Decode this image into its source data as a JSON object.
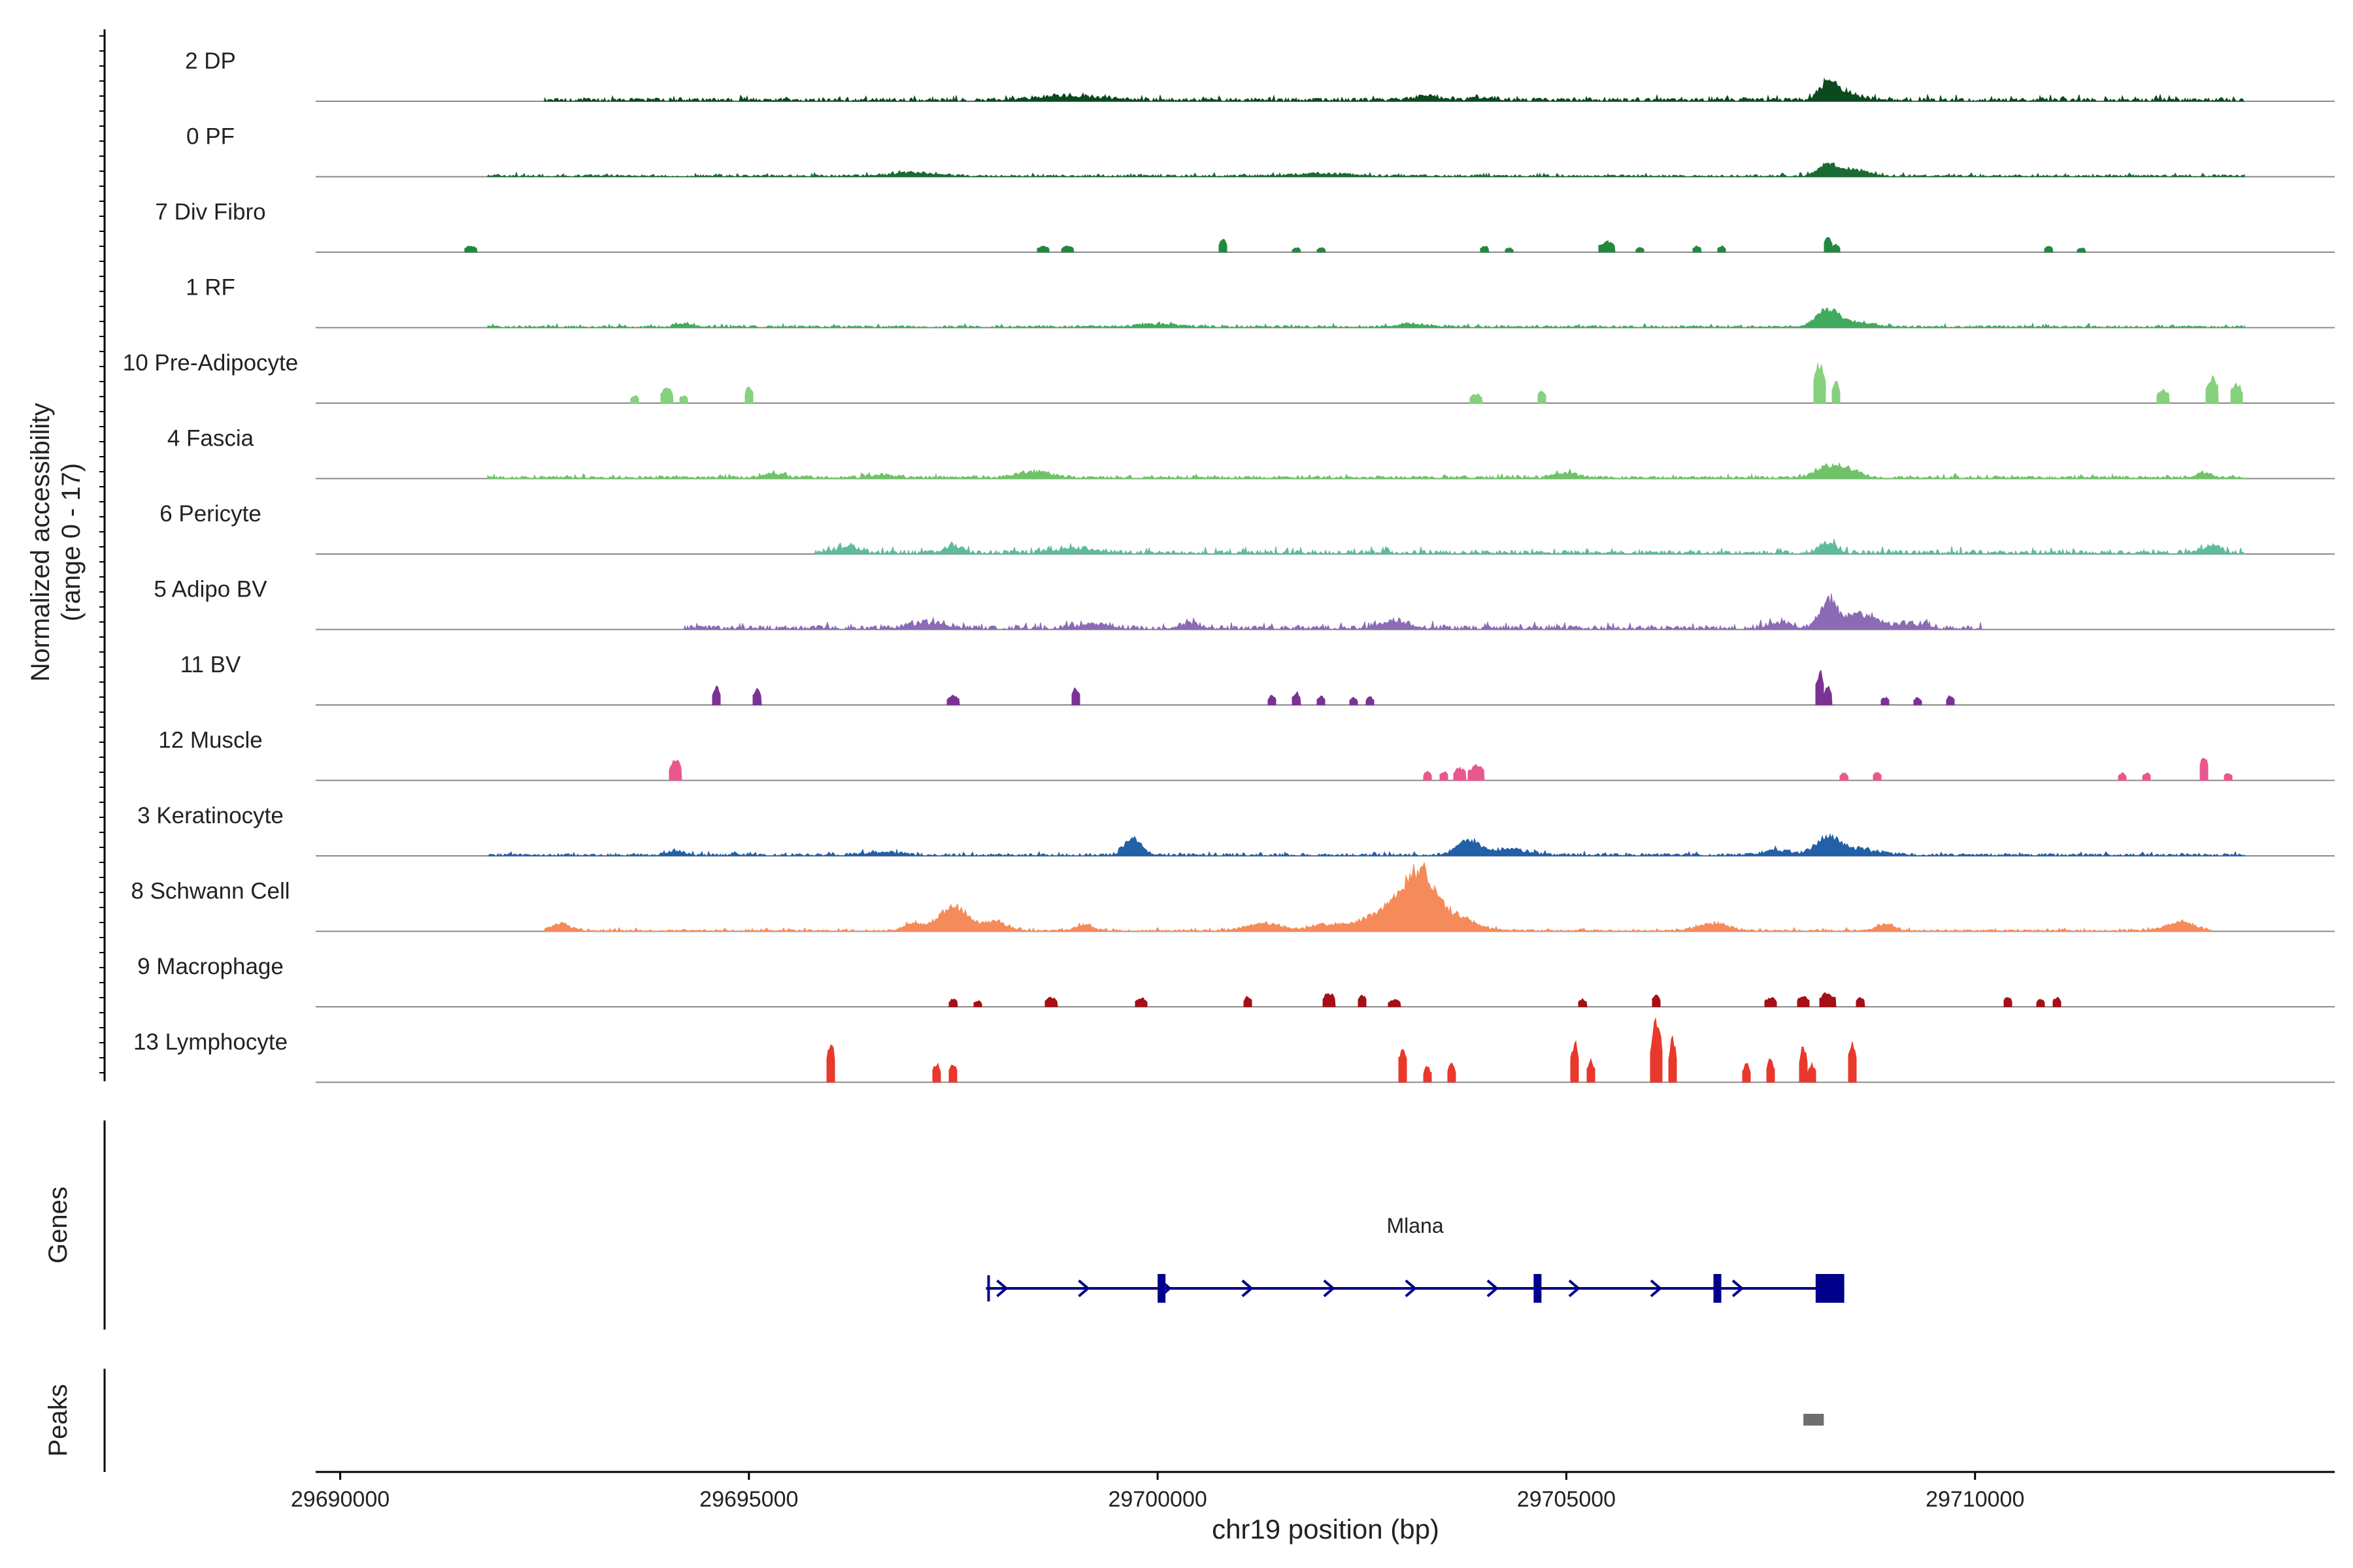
{
  "chart_data": {
    "type": "area",
    "title": "",
    "ylabel_line1": "Normalized accessibility",
    "ylabel_line2": "(range 0 - 17)",
    "ylim": [
      0,
      17
    ],
    "xlabel": "chr19 position (bp)",
    "xlim": [
      29689700,
      29714400
    ],
    "xticks": [
      29690000,
      29695000,
      29700000,
      29705000,
      29710000
    ],
    "xtick_labels": [
      "29690000",
      "29695000",
      "29700000",
      "29705000",
      "29710000"
    ],
    "tracks": [
      {
        "name": "2 DP",
        "color": "#0b4a1f",
        "mode": "continuous",
        "start": 29692500,
        "end": 29713300,
        "base": 0.6,
        "ampl": 1.6,
        "peaks": [
          [
            29698900,
            500,
            3
          ],
          [
            29703300,
            200,
            3
          ],
          [
            29704000,
            200,
            2
          ],
          [
            29708200,
            150,
            10
          ],
          [
            29708400,
            250,
            5
          ]
        ]
      },
      {
        "name": "0 PF",
        "color": "#1a6b32",
        "mode": "continuous",
        "start": 29691800,
        "end": 29713300,
        "base": 0.3,
        "ampl": 1.1,
        "peaks": [
          [
            29697000,
            400,
            2
          ],
          [
            29702000,
            500,
            1.6
          ],
          [
            29708200,
            150,
            8
          ],
          [
            29708500,
            250,
            4
          ]
        ]
      },
      {
        "name": "7 Div Fibro",
        "color": "#23883f",
        "mode": "sparse",
        "peaks": [
          [
            29691600,
            150,
            4
          ],
          [
            29698600,
            150,
            4
          ],
          [
            29698900,
            150,
            4
          ],
          [
            29700800,
            80,
            8
          ],
          [
            29701700,
            100,
            3
          ],
          [
            29702000,
            100,
            3
          ],
          [
            29704000,
            100,
            4
          ],
          [
            29704300,
            100,
            3
          ],
          [
            29705500,
            200,
            7
          ],
          [
            29705900,
            80,
            3
          ],
          [
            29706600,
            100,
            4
          ],
          [
            29706900,
            100,
            4
          ],
          [
            29708200,
            80,
            11
          ],
          [
            29708300,
            80,
            5
          ],
          [
            29710900,
            100,
            4
          ],
          [
            29711300,
            100,
            3
          ]
        ]
      },
      {
        "name": "1 RF",
        "color": "#41ab5d",
        "mode": "continuous",
        "start": 29691800,
        "end": 29713300,
        "base": 0.3,
        "ampl": 1.1,
        "peaks": [
          [
            29694200,
            150,
            2.5
          ],
          [
            29700000,
            400,
            1.5
          ],
          [
            29703100,
            300,
            2
          ],
          [
            29708200,
            200,
            12
          ],
          [
            29708600,
            250,
            3
          ]
        ]
      },
      {
        "name": "10 Pre-Adipocyte",
        "color": "#86d17e",
        "mode": "sparse",
        "peaks": [
          [
            29693600,
            80,
            5
          ],
          [
            29694000,
            150,
            10
          ],
          [
            29694200,
            100,
            5
          ],
          [
            29695000,
            100,
            11
          ],
          [
            29703900,
            150,
            6
          ],
          [
            29704700,
            100,
            9
          ],
          [
            29708100,
            150,
            26
          ],
          [
            29708300,
            100,
            14
          ],
          [
            29712300,
            150,
            9
          ],
          [
            29712900,
            150,
            17
          ],
          [
            29713200,
            150,
            13
          ]
        ]
      },
      {
        "name": "4 Fascia",
        "color": "#6fc367",
        "mode": "continuous",
        "start": 29691800,
        "end": 29713300,
        "base": 0.5,
        "ampl": 1.2,
        "peaks": [
          [
            29695300,
            150,
            3
          ],
          [
            29696600,
            200,
            2
          ],
          [
            29698500,
            300,
            4
          ],
          [
            29705000,
            200,
            3
          ],
          [
            29708200,
            200,
            8
          ],
          [
            29708500,
            200,
            4
          ],
          [
            29712800,
            150,
            3
          ]
        ]
      },
      {
        "name": "6 Pericyte",
        "color": "#5ebc9d",
        "mode": "continuous",
        "start": 29695800,
        "end": 29713300,
        "base": 0.5,
        "ampl": 2.0,
        "peaks": [
          [
            29696200,
            200,
            4
          ],
          [
            29697500,
            150,
            5
          ],
          [
            29699000,
            400,
            3
          ],
          [
            29708200,
            150,
            6
          ],
          [
            29712900,
            150,
            5
          ]
        ]
      },
      {
        "name": "5 Adipo BV",
        "color": "#8b6bb5",
        "mode": "continuous",
        "start": 29694200,
        "end": 29710100,
        "base": 0.4,
        "ampl": 2.2,
        "peaks": [
          [
            29697200,
            300,
            4
          ],
          [
            29699200,
            300,
            3
          ],
          [
            29700400,
            200,
            3
          ],
          [
            29702900,
            250,
            5
          ],
          [
            29708200,
            150,
            18
          ],
          [
            29708600,
            300,
            9
          ],
          [
            29707600,
            200,
            4
          ],
          [
            29709200,
            200,
            3
          ]
        ]
      },
      {
        "name": "11 BV",
        "color": "#7b3294",
        "mode": "sparse",
        "peaks": [
          [
            29694600,
            100,
            12
          ],
          [
            29695100,
            100,
            10
          ],
          [
            29697500,
            150,
            6
          ],
          [
            29699000,
            100,
            11
          ],
          [
            29701400,
            80,
            6
          ],
          [
            29701700,
            100,
            8
          ],
          [
            29702000,
            80,
            6
          ],
          [
            29702400,
            80,
            5
          ],
          [
            29702600,
            80,
            5
          ],
          [
            29708100,
            80,
            22
          ],
          [
            29708200,
            100,
            12
          ],
          [
            29708900,
            80,
            5
          ],
          [
            29709300,
            80,
            5
          ],
          [
            29709700,
            80,
            6
          ]
        ]
      },
      {
        "name": "12 Muscle",
        "color": "#e8588f",
        "mode": "sparse",
        "peaks": [
          [
            29694100,
            150,
            13
          ],
          [
            29703300,
            80,
            6
          ],
          [
            29703500,
            80,
            6
          ],
          [
            29703700,
            150,
            8
          ],
          [
            29703900,
            200,
            10
          ],
          [
            29708400,
            100,
            5
          ],
          [
            29708800,
            80,
            6
          ],
          [
            29711800,
            80,
            5
          ],
          [
            29712100,
            80,
            5
          ],
          [
            29712800,
            100,
            17
          ],
          [
            29713100,
            80,
            5
          ]
        ]
      },
      {
        "name": "3 Keratinocyte",
        "color": "#2260a8",
        "mode": "continuous",
        "start": 29691800,
        "end": 29713300,
        "base": 0.4,
        "ampl": 1.2,
        "peaks": [
          [
            29694100,
            150,
            3
          ],
          [
            29696600,
            300,
            2
          ],
          [
            29699700,
            150,
            10
          ],
          [
            29703800,
            200,
            10
          ],
          [
            29704300,
            300,
            4
          ],
          [
            29707600,
            250,
            3
          ],
          [
            29708200,
            200,
            12
          ],
          [
            29708600,
            300,
            4
          ]
        ]
      },
      {
        "name": "8 Schwann Cell",
        "color": "#f58b5a",
        "mode": "continuous",
        "start": 29692500,
        "end": 29712900,
        "base": 0.2,
        "ampl": 1.0,
        "peaks": [
          [
            29692700,
            150,
            5
          ],
          [
            29697000,
            150,
            5
          ],
          [
            29697500,
            250,
            16
          ],
          [
            29698000,
            200,
            6
          ],
          [
            29699100,
            150,
            4
          ],
          [
            29701300,
            300,
            5
          ],
          [
            29702100,
            300,
            4
          ],
          [
            29702800,
            350,
            14
          ],
          [
            29703200,
            250,
            36
          ],
          [
            29703600,
            350,
            10
          ],
          [
            29706800,
            250,
            5
          ],
          [
            29708900,
            150,
            5
          ],
          [
            29712500,
            250,
            6
          ]
        ]
      },
      {
        "name": "9 Macrophage",
        "color": "#a50f15",
        "mode": "sparse",
        "peaks": [
          [
            29697500,
            100,
            5
          ],
          [
            29697800,
            80,
            4
          ],
          [
            29698700,
            150,
            6
          ],
          [
            29699800,
            150,
            6
          ],
          [
            29701100,
            80,
            7
          ],
          [
            29702100,
            150,
            9
          ],
          [
            29702500,
            100,
            8
          ],
          [
            29702900,
            150,
            5
          ],
          [
            29705200,
            100,
            5
          ],
          [
            29706100,
            80,
            8
          ],
          [
            29707500,
            150,
            6
          ],
          [
            29707900,
            150,
            7
          ],
          [
            29708200,
            200,
            9
          ],
          [
            29708600,
            100,
            6
          ],
          [
            29710400,
            80,
            7
          ],
          [
            29710800,
            80,
            5
          ],
          [
            29711000,
            80,
            6
          ]
        ]
      },
      {
        "name": "13 Lymphocyte",
        "color": "#e8392c",
        "mode": "sparse",
        "peaks": [
          [
            29696000,
            80,
            26
          ],
          [
            29697300,
            60,
            12
          ],
          [
            29697500,
            60,
            12
          ],
          [
            29703000,
            80,
            25
          ],
          [
            29703300,
            50,
            10
          ],
          [
            29703600,
            60,
            12
          ],
          [
            29705100,
            80,
            26
          ],
          [
            29705300,
            60,
            14
          ],
          [
            29706100,
            150,
            38
          ],
          [
            29706300,
            100,
            28
          ],
          [
            29707200,
            60,
            12
          ],
          [
            29707500,
            80,
            15
          ],
          [
            29707900,
            60,
            24
          ],
          [
            29708000,
            60,
            12
          ],
          [
            29708500,
            80,
            28
          ]
        ]
      }
    ],
    "genes_label": "Genes",
    "gene": {
      "name": "Mlana",
      "strand": "+",
      "start": 29697900,
      "end": 29708400,
      "exons": [
        [
          29700000,
          29700080
        ],
        [
          29704600,
          29704680
        ],
        [
          29706800,
          29706880
        ],
        [
          29708050,
          29708400
        ]
      ]
    },
    "peaks_label": "Peaks",
    "peaks_regions": [
      [
        29707900,
        29708150
      ]
    ]
  }
}
